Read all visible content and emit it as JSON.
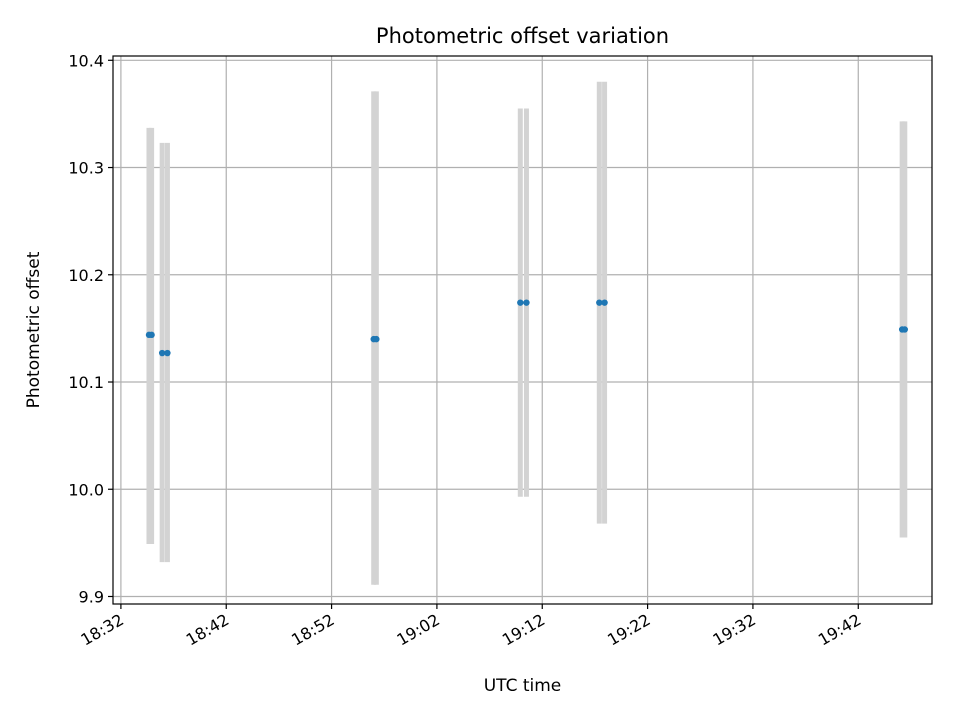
{
  "chart_data": {
    "type": "scatter",
    "title": "Photometric offset variation",
    "xlabel": "UTC time",
    "ylabel": "Photometric offset",
    "xlim": [
      "18:31:15",
      "19:49:00"
    ],
    "ylim": [
      9.893,
      10.404
    ],
    "grid": true,
    "x_ticks": [
      "18:32",
      "18:42",
      "18:52",
      "19:02",
      "19:12",
      "19:22",
      "19:32",
      "19:42"
    ],
    "y_ticks": [
      9.9,
      10.0,
      10.1,
      10.2,
      10.3,
      10.4
    ],
    "y_tick_labels": [
      "9.9",
      "10.0",
      "10.1",
      "10.2",
      "10.3",
      "10.4"
    ],
    "x_tick_rotation": 30,
    "series": [
      {
        "points": [
          {
            "t": "18:34:40",
            "y": 10.144,
            "err_low": 9.949,
            "err_high": 10.337
          },
          {
            "t": "18:34:55",
            "y": 10.144,
            "err_low": 9.949,
            "err_high": 10.337
          },
          {
            "t": "18:35:55",
            "y": 10.127,
            "err_low": 9.932,
            "err_high": 10.323
          },
          {
            "t": "18:36:25",
            "y": 10.127,
            "err_low": 9.932,
            "err_high": 10.323
          },
          {
            "t": "18:56:00",
            "y": 10.14,
            "err_low": 9.911,
            "err_high": 10.371
          },
          {
            "t": "18:56:15",
            "y": 10.14,
            "err_low": 9.911,
            "err_high": 10.371
          },
          {
            "t": "19:09:55",
            "y": 10.174,
            "err_low": 9.993,
            "err_high": 10.355
          },
          {
            "t": "19:10:30",
            "y": 10.174,
            "err_low": 9.993,
            "err_high": 10.355
          },
          {
            "t": "19:17:25",
            "y": 10.174,
            "err_low": 9.968,
            "err_high": 10.38
          },
          {
            "t": "19:17:55",
            "y": 10.174,
            "err_low": 9.968,
            "err_high": 10.38
          },
          {
            "t": "19:46:10",
            "y": 10.149,
            "err_low": 9.955,
            "err_high": 10.343
          },
          {
            "t": "19:46:25",
            "y": 10.149,
            "err_low": 9.955,
            "err_high": 10.343
          }
        ]
      }
    ],
    "colors": {
      "point": "#1f77b4",
      "errorbar": "#d3d3d3",
      "grid": "#b0b0b0"
    }
  }
}
